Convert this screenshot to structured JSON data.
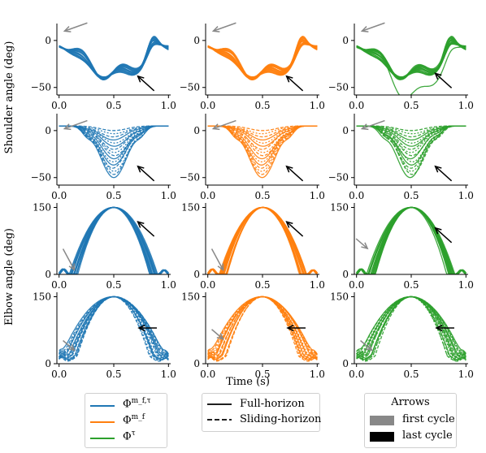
{
  "chart_data": {
    "type": "line",
    "xlabel": "Time (s)",
    "row_labels": [
      "Shoulder angle (deg)",
      "Elbow angle (deg)"
    ],
    "x_ticks": [
      "0.0",
      "0.5",
      "1.0"
    ],
    "shoulder_y_ticks": [
      "0",
      "−50"
    ],
    "elbow_y_ticks": [
      "0",
      "150"
    ],
    "shoulder_ylim": [
      -58,
      18
    ],
    "elbow_ylim": [
      0,
      160
    ],
    "xlim": [
      -0.02,
      1.02
    ],
    "colors": {
      "mft": "#1f77b4",
      "mf": "#ff7f0e",
      "tau": "#2ca02c",
      "first_arrow": "#888888",
      "last_arrow": "#000000"
    },
    "series_columns": [
      "mft",
      "mf",
      "tau"
    ],
    "grid": false,
    "legends": {
      "series": {
        "placement": "bottom-left",
        "entries": [
          {
            "key": "mft",
            "label": "Φ",
            "sup": "m_f,τ"
          },
          {
            "key": "mf",
            "label": "Φ",
            "sup": "m_f"
          },
          {
            "key": "tau",
            "label": "Φ",
            "sup": "τ"
          }
        ]
      },
      "horizon": {
        "placement": "bottom-center",
        "entries": [
          {
            "style": "solid",
            "label": "Full-horizon"
          },
          {
            "style": "dashed",
            "label": "Sliding-horizon"
          }
        ]
      },
      "arrows": {
        "placement": "bottom-right",
        "title": "Arrows",
        "entries": [
          {
            "color": "#888888",
            "label": "first cycle"
          },
          {
            "color": "#000000",
            "label": "last cycle"
          }
        ]
      }
    },
    "panels": [
      {
        "row": 0,
        "col": 0,
        "kind": "shoulder_full",
        "first_arrow": [
          0.05,
          10
        ],
        "last_arrow": [
          0.72,
          -38
        ]
      },
      {
        "row": 0,
        "col": 1,
        "kind": "shoulder_full",
        "first_arrow": [
          0.05,
          10
        ],
        "last_arrow": [
          0.72,
          -38
        ]
      },
      {
        "row": 0,
        "col": 2,
        "kind": "shoulder_full",
        "first_arrow": [
          0.05,
          10
        ],
        "last_arrow": [
          0.72,
          -35
        ]
      },
      {
        "row": 1,
        "col": 0,
        "kind": "shoulder_sliding",
        "first_arrow": [
          0.05,
          2
        ],
        "last_arrow": [
          0.72,
          -38
        ]
      },
      {
        "row": 1,
        "col": 1,
        "kind": "shoulder_sliding",
        "first_arrow": [
          0.05,
          2
        ],
        "last_arrow": [
          0.72,
          -38
        ]
      },
      {
        "row": 1,
        "col": 2,
        "kind": "shoulder_sliding",
        "first_arrow": [
          0.05,
          2
        ],
        "last_arrow": [
          0.72,
          -38
        ]
      },
      {
        "row": 2,
        "col": 0,
        "kind": "elbow_full",
        "first_arrow": [
          0.14,
          10
        ],
        "last_arrow": [
          0.72,
          118
        ]
      },
      {
        "row": 2,
        "col": 1,
        "kind": "elbow_full",
        "first_arrow": [
          0.14,
          10
        ],
        "last_arrow": [
          0.72,
          118
        ]
      },
      {
        "row": 2,
        "col": 2,
        "kind": "elbow_full",
        "first_arrow": [
          0.1,
          58
        ],
        "last_arrow": [
          0.72,
          104
        ]
      },
      {
        "row": 3,
        "col": 0,
        "kind": "elbow_sliding",
        "first_arrow": [
          0.14,
          30
        ],
        "last_arrow": [
          0.73,
          80
        ]
      },
      {
        "row": 3,
        "col": 1,
        "kind": "elbow_sliding",
        "first_arrow": [
          0.14,
          55
        ],
        "last_arrow": [
          0.73,
          80
        ]
      },
      {
        "row": 3,
        "col": 2,
        "kind": "elbow_sliding",
        "first_arrow": [
          0.14,
          30
        ],
        "last_arrow": [
          0.73,
          80
        ]
      }
    ]
  }
}
